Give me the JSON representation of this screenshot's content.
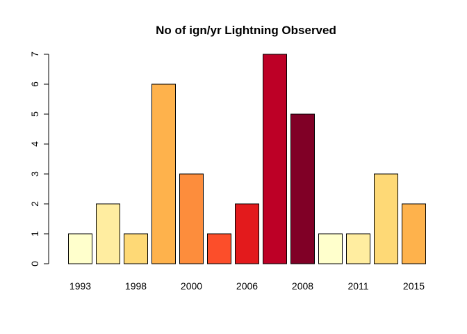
{
  "chart_data": {
    "type": "bar",
    "title": "No of ign/yr Lightning Observed",
    "xlabel": "",
    "ylabel": "",
    "ylim": [
      0,
      7
    ],
    "y_ticks": [
      0,
      1,
      2,
      3,
      4,
      5,
      6,
      7
    ],
    "x_tick_labels": [
      "1993",
      "",
      "1998",
      "",
      "2000",
      "",
      "2006",
      "",
      "2008",
      "",
      "2011",
      "",
      "2015"
    ],
    "categories": [
      "1993",
      "",
      "1998",
      "",
      "2000",
      "",
      "2006",
      "",
      "2008",
      "",
      "2011",
      "",
      "2015"
    ],
    "values": [
      1,
      2,
      1,
      6,
      3,
      1,
      2,
      7,
      5,
      1,
      1,
      3,
      2
    ],
    "colors": [
      "#FFFFCC",
      "#FFEDA0",
      "#FED976",
      "#FEB24C",
      "#FD8D3C",
      "#FC4E2A",
      "#E31A1C",
      "#BD0026",
      "#800026",
      "#FFFFCC",
      "#FFEDA0",
      "#FED976",
      "#FEB24C"
    ],
    "grid": false,
    "legend": "none"
  }
}
